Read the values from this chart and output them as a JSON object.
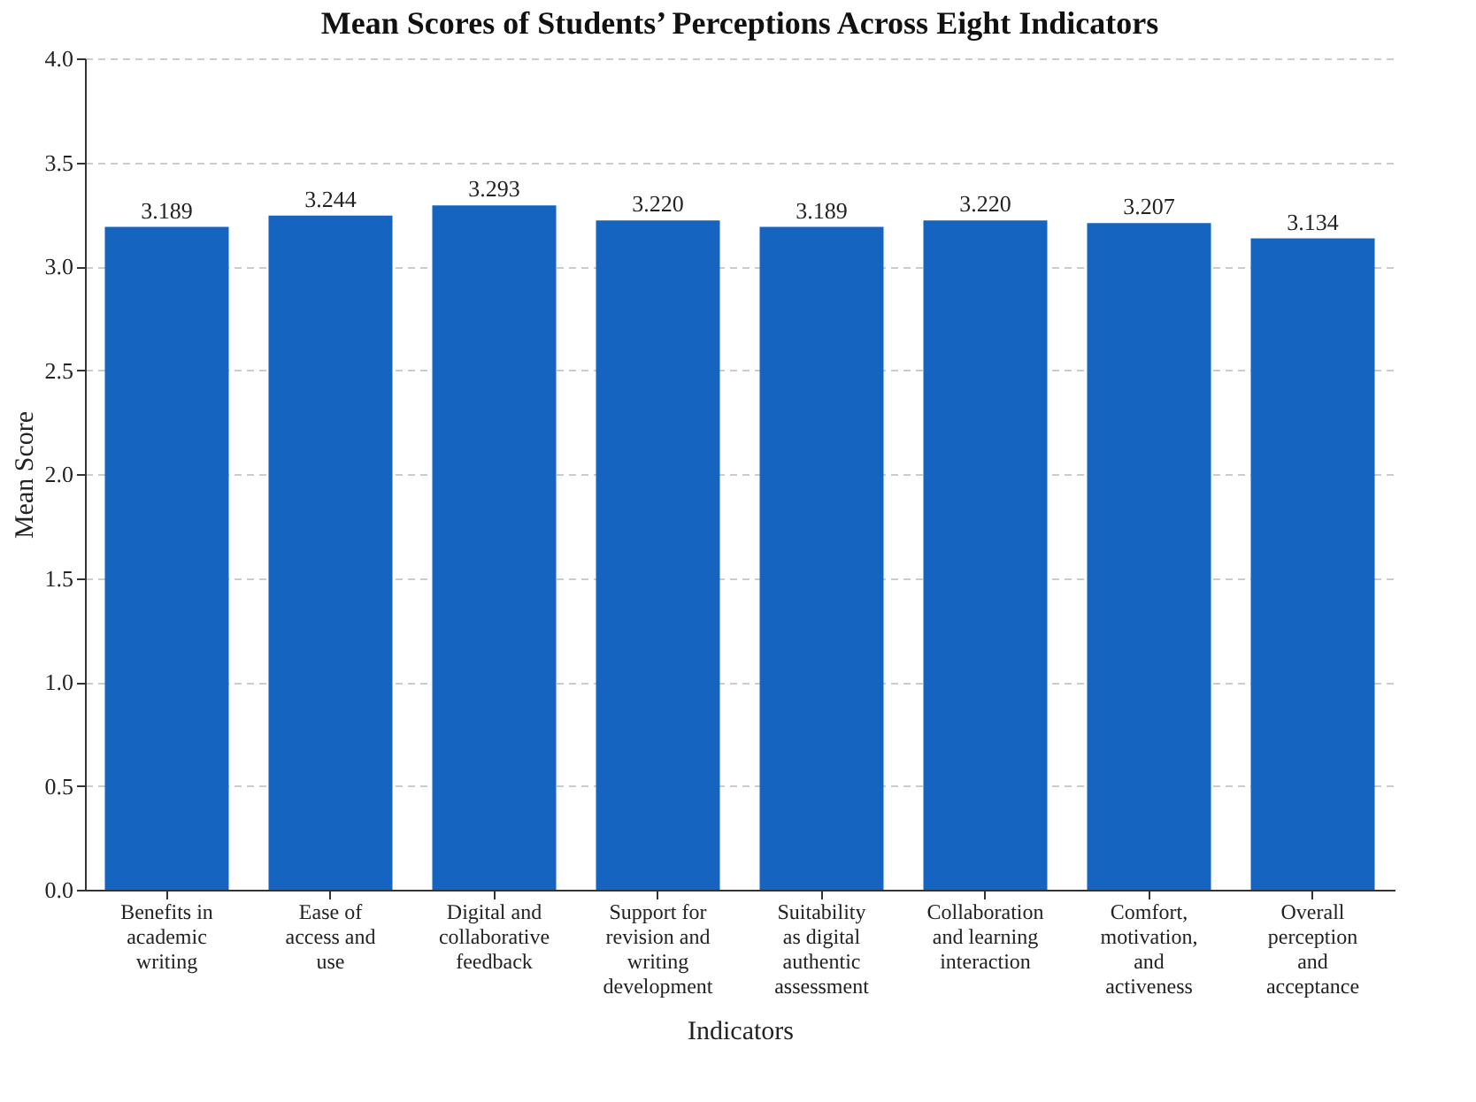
{
  "chart_data": {
    "type": "bar",
    "title": "Mean Scores of Students’ Perceptions Across Eight Indicators",
    "xlabel": "Indicators",
    "ylabel": "Mean Score",
    "categories": [
      "Benefits in academic writing",
      "Ease of access and use",
      "Digital and collaborative feedback",
      "Support for revision and writing development",
      "Suitability as digital authentic assessment",
      "Collaboration and learning interaction",
      "Comfort, motivation, and activeness",
      "Overall perception and acceptance"
    ],
    "values": [
      3.189,
      3.244,
      3.293,
      3.22,
      3.189,
      3.22,
      3.207,
      3.134
    ],
    "value_labels": [
      "3.189",
      "3.244",
      "3.293",
      "3.220",
      "3.189",
      "3.220",
      "3.207",
      "3.134"
    ],
    "color": "#1565c0",
    "ylim": [
      0,
      4
    ],
    "yticks": [
      {
        "value": 0,
        "label": "0.0"
      },
      0.5,
      {
        "value": 1,
        "label": "1.0"
      },
      1.5,
      {
        "value": 2,
        "label": "2.0"
      },
      2.5,
      {
        "value": 3,
        "label": "3.0"
      },
      3.5,
      {
        "value": 4,
        "label": "4.0"
      }
    ],
    "grid": "y"
  }
}
